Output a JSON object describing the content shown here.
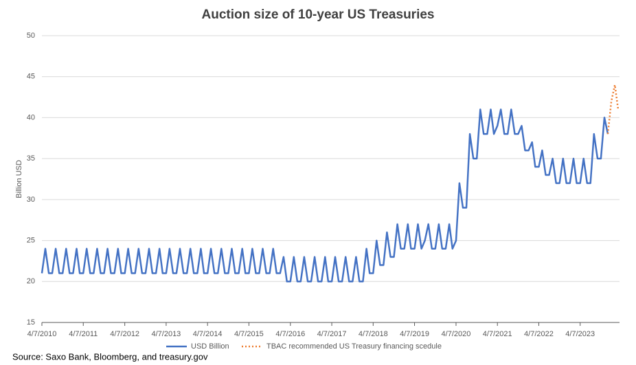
{
  "chart_data": {
    "type": "line",
    "title": "Auction size of 10-year US Treasuries",
    "y_label": "Billion USD",
    "source": "Source: Saxo Bank, Bloomberg, and treasury.gov",
    "xlim": [
      "4/7/2010",
      "3/7/2024"
    ],
    "xticks": [
      "4/7/2010",
      "4/7/2011",
      "4/7/2012",
      "4/7/2013",
      "4/7/2014",
      "4/7/2015",
      "4/7/2016",
      "4/7/2017",
      "4/7/2018",
      "4/7/2019",
      "4/7/2020",
      "4/7/2021",
      "4/7/2022",
      "4/7/2023"
    ],
    "ylim": [
      15,
      50
    ],
    "yticks": [
      15,
      20,
      25,
      30,
      35,
      40,
      45,
      50
    ],
    "grid": true,
    "legend": "bottom",
    "series": [
      {
        "name": "USD Billion",
        "color": "#4472c4",
        "style": "solid",
        "x": [
          "4/7/2010",
          "5/7/2010",
          "6/7/2010",
          "7/7/2010",
          "8/7/2010",
          "9/7/2010",
          "10/7/2010",
          "11/7/2010",
          "12/7/2010",
          "1/7/2011",
          "2/7/2011",
          "3/7/2011",
          "4/7/2011",
          "5/7/2011",
          "6/7/2011",
          "7/7/2011",
          "8/7/2011",
          "9/7/2011",
          "10/7/2011",
          "11/7/2011",
          "12/7/2011",
          "1/7/2012",
          "2/7/2012",
          "3/7/2012",
          "4/7/2012",
          "5/7/2012",
          "6/7/2012",
          "7/7/2012",
          "8/7/2012",
          "9/7/2012",
          "10/7/2012",
          "11/7/2012",
          "12/7/2012",
          "1/7/2013",
          "2/7/2013",
          "3/7/2013",
          "4/7/2013",
          "5/7/2013",
          "6/7/2013",
          "7/7/2013",
          "8/7/2013",
          "9/7/2013",
          "10/7/2013",
          "11/7/2013",
          "12/7/2013",
          "1/7/2014",
          "2/7/2014",
          "3/7/2014",
          "4/7/2014",
          "5/7/2014",
          "6/7/2014",
          "7/7/2014",
          "8/7/2014",
          "9/7/2014",
          "10/7/2014",
          "11/7/2014",
          "12/7/2014",
          "1/7/2015",
          "2/7/2015",
          "3/7/2015",
          "4/7/2015",
          "5/7/2015",
          "6/7/2015",
          "7/7/2015",
          "8/7/2015",
          "9/7/2015",
          "10/7/2015",
          "11/7/2015",
          "12/7/2015",
          "1/7/2016",
          "2/7/2016",
          "3/7/2016",
          "4/7/2016",
          "5/7/2016",
          "6/7/2016",
          "7/7/2016",
          "8/7/2016",
          "9/7/2016",
          "10/7/2016",
          "11/7/2016",
          "12/7/2016",
          "1/7/2017",
          "2/7/2017",
          "3/7/2017",
          "4/7/2017",
          "5/7/2017",
          "6/7/2017",
          "7/7/2017",
          "8/7/2017",
          "9/7/2017",
          "10/7/2017",
          "11/7/2017",
          "12/7/2017",
          "1/7/2018",
          "2/7/2018",
          "3/7/2018",
          "4/7/2018",
          "5/7/2018",
          "6/7/2018",
          "7/7/2018",
          "8/7/2018",
          "9/7/2018",
          "10/7/2018",
          "11/7/2018",
          "12/7/2018",
          "1/7/2019",
          "2/7/2019",
          "3/7/2019",
          "4/7/2019",
          "5/7/2019",
          "6/7/2019",
          "7/7/2019",
          "8/7/2019",
          "9/7/2019",
          "10/7/2019",
          "11/7/2019",
          "12/7/2019",
          "1/7/2020",
          "2/7/2020",
          "3/7/2020",
          "4/7/2020",
          "5/7/2020",
          "6/7/2020",
          "7/7/2020",
          "8/7/2020",
          "9/7/2020",
          "10/7/2020",
          "11/7/2020",
          "12/7/2020",
          "1/7/2021",
          "2/7/2021",
          "3/7/2021",
          "4/7/2021",
          "5/7/2021",
          "6/7/2021",
          "7/7/2021",
          "8/7/2021",
          "9/7/2021",
          "10/7/2021",
          "11/7/2021",
          "12/7/2021",
          "1/7/2022",
          "2/7/2022",
          "3/7/2022",
          "4/7/2022",
          "5/7/2022",
          "6/7/2022",
          "7/7/2022",
          "8/7/2022",
          "9/7/2022",
          "10/7/2022",
          "11/7/2022",
          "12/7/2022",
          "1/7/2023",
          "2/7/2023",
          "3/7/2023",
          "4/7/2023",
          "5/7/2023",
          "6/7/2023",
          "7/7/2023",
          "8/7/2023",
          "9/7/2023",
          "10/7/2023",
          "11/7/2023",
          "12/7/2023"
        ],
        "values": [
          21,
          24,
          21,
          21,
          24,
          21,
          21,
          24,
          21,
          21,
          24,
          21,
          21,
          24,
          21,
          21,
          24,
          21,
          21,
          24,
          21,
          21,
          24,
          21,
          21,
          24,
          21,
          21,
          24,
          21,
          21,
          24,
          21,
          21,
          24,
          21,
          21,
          24,
          21,
          21,
          24,
          21,
          21,
          24,
          21,
          21,
          24,
          21,
          21,
          24,
          21,
          21,
          24,
          21,
          21,
          24,
          21,
          21,
          24,
          21,
          21,
          24,
          21,
          21,
          24,
          21,
          21,
          24,
          21,
          21,
          23,
          20,
          20,
          23,
          20,
          20,
          23,
          20,
          20,
          23,
          20,
          20,
          23,
          20,
          20,
          23,
          20,
          20,
          23,
          20,
          20,
          23,
          20,
          20,
          24,
          21,
          21,
          25,
          22,
          22,
          26,
          23,
          23,
          27,
          24,
          24,
          27,
          24,
          24,
          27,
          24,
          25,
          27,
          24,
          24,
          27,
          24,
          24,
          27,
          24,
          25,
          32,
          29,
          29,
          38,
          35,
          35,
          41,
          38,
          38,
          41,
          38,
          39,
          41,
          38,
          38,
          41,
          38,
          38,
          39,
          36,
          36,
          37,
          34,
          34,
          36,
          33,
          33,
          35,
          32,
          32,
          35,
          32,
          32,
          35,
          32,
          32,
          35,
          32,
          32,
          38,
          35,
          35,
          40,
          38
        ]
      },
      {
        "name": "TBAC recommended US Treasury financing scedule",
        "color": "#ed7d31",
        "style": "dotted",
        "x": [
          "12/7/2023",
          "1/7/2024",
          "2/7/2024",
          "3/7/2024"
        ],
        "values": [
          38,
          42,
          44,
          41
        ]
      }
    ]
  }
}
